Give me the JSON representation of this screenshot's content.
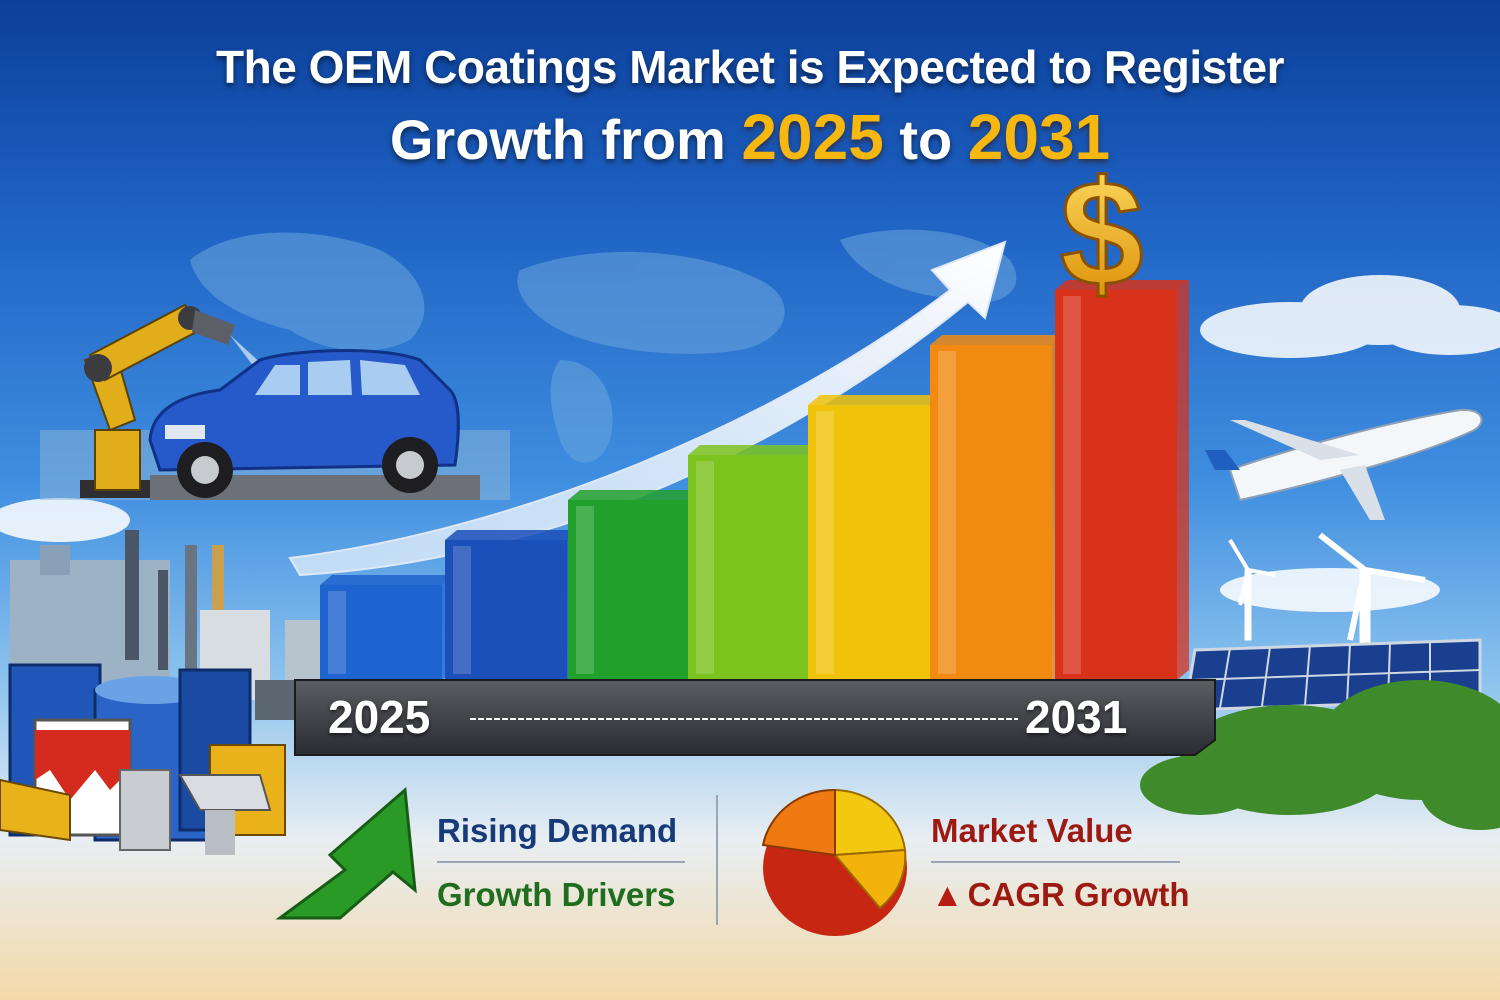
{
  "title": {
    "line1": "The OEM Coatings Market is Expected to Register",
    "line2_prefix": "Growth from",
    "start_year": "2025",
    "connector": "to",
    "end_year": "2031"
  },
  "timeline": {
    "start_label": "2025",
    "end_label": "2031"
  },
  "legend": {
    "left": {
      "rising_demand": "Rising Demand",
      "growth_drivers": "Growth Drivers",
      "icon": "green-up-arrow-icon"
    },
    "right": {
      "market_value": "Market Value",
      "cagr_growth": "CAGR Growth",
      "icon": "pie-chart-icon"
    }
  },
  "bar_colors": [
    "#1e63cf",
    "#1b4fb9",
    "#22a02c",
    "#7cc31e",
    "#f0c20a",
    "#f18a10",
    "#d8321b"
  ],
  "colors": {
    "title_highlight": "#f6b80f",
    "legend_blue": "#173a78",
    "legend_green": "#1f6d1f",
    "legend_red": "#9d1a12"
  }
}
